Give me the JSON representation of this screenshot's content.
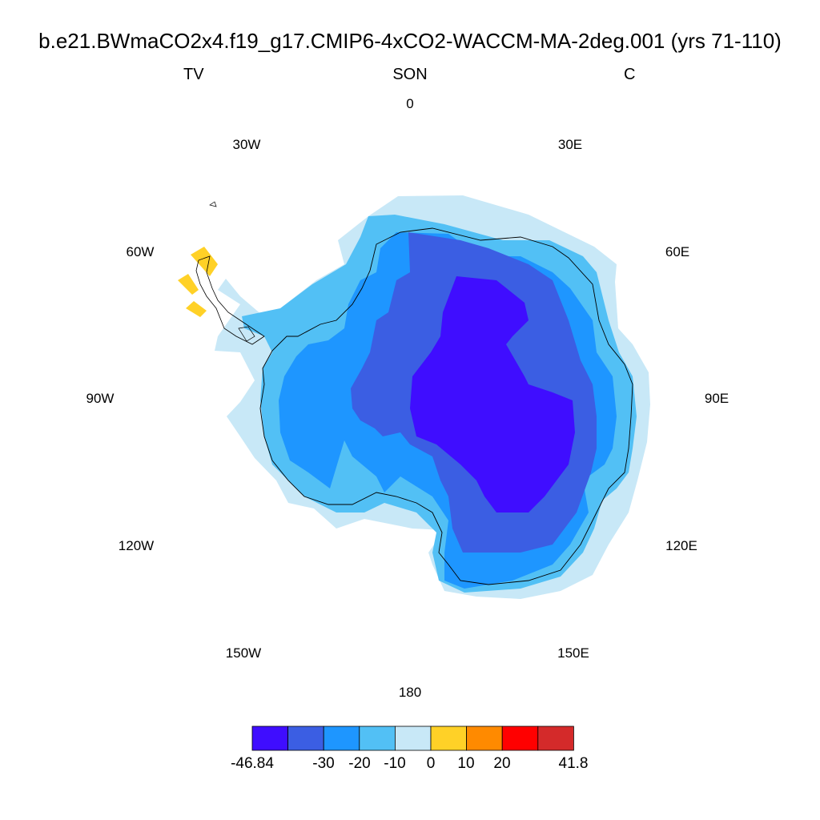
{
  "title": "b.e21.BWmaCO2x4.f19_g17.CMIP6-4xCO2-WACCM-MA-2deg.001 (yrs 71-110)",
  "subtitle": {
    "left": "TV",
    "center": "SON",
    "right": "C"
  },
  "longitude_labels": [
    "0",
    "30E",
    "60E",
    "90E",
    "120E",
    "150E",
    "180",
    "150W",
    "120W",
    "90W",
    "60W",
    "30W"
  ],
  "colorbar": {
    "colors": [
      "#3f0dff",
      "#3b5ee3",
      "#1e96ff",
      "#52c0f5",
      "#c8e8f7",
      "#ffd127",
      "#ff8a00",
      "#ff0000",
      "#d42a2a"
    ],
    "labels": [
      "-46.84",
      "-30",
      "-20",
      "-10",
      "0",
      "10",
      "20",
      "41.8"
    ]
  },
  "map": {
    "projection": "south-polar-stereographic",
    "field": "TV",
    "season": "SON",
    "units": "C",
    "colors_by_level": {
      "strong_negative": "#3f0dff",
      "moderate_negative": "#3b5ee3",
      "negative": "#1e96ff",
      "weak_negative": "#52c0f5",
      "near_zero": "#c8e8f7",
      "weak_positive": "#ffd127"
    }
  }
}
